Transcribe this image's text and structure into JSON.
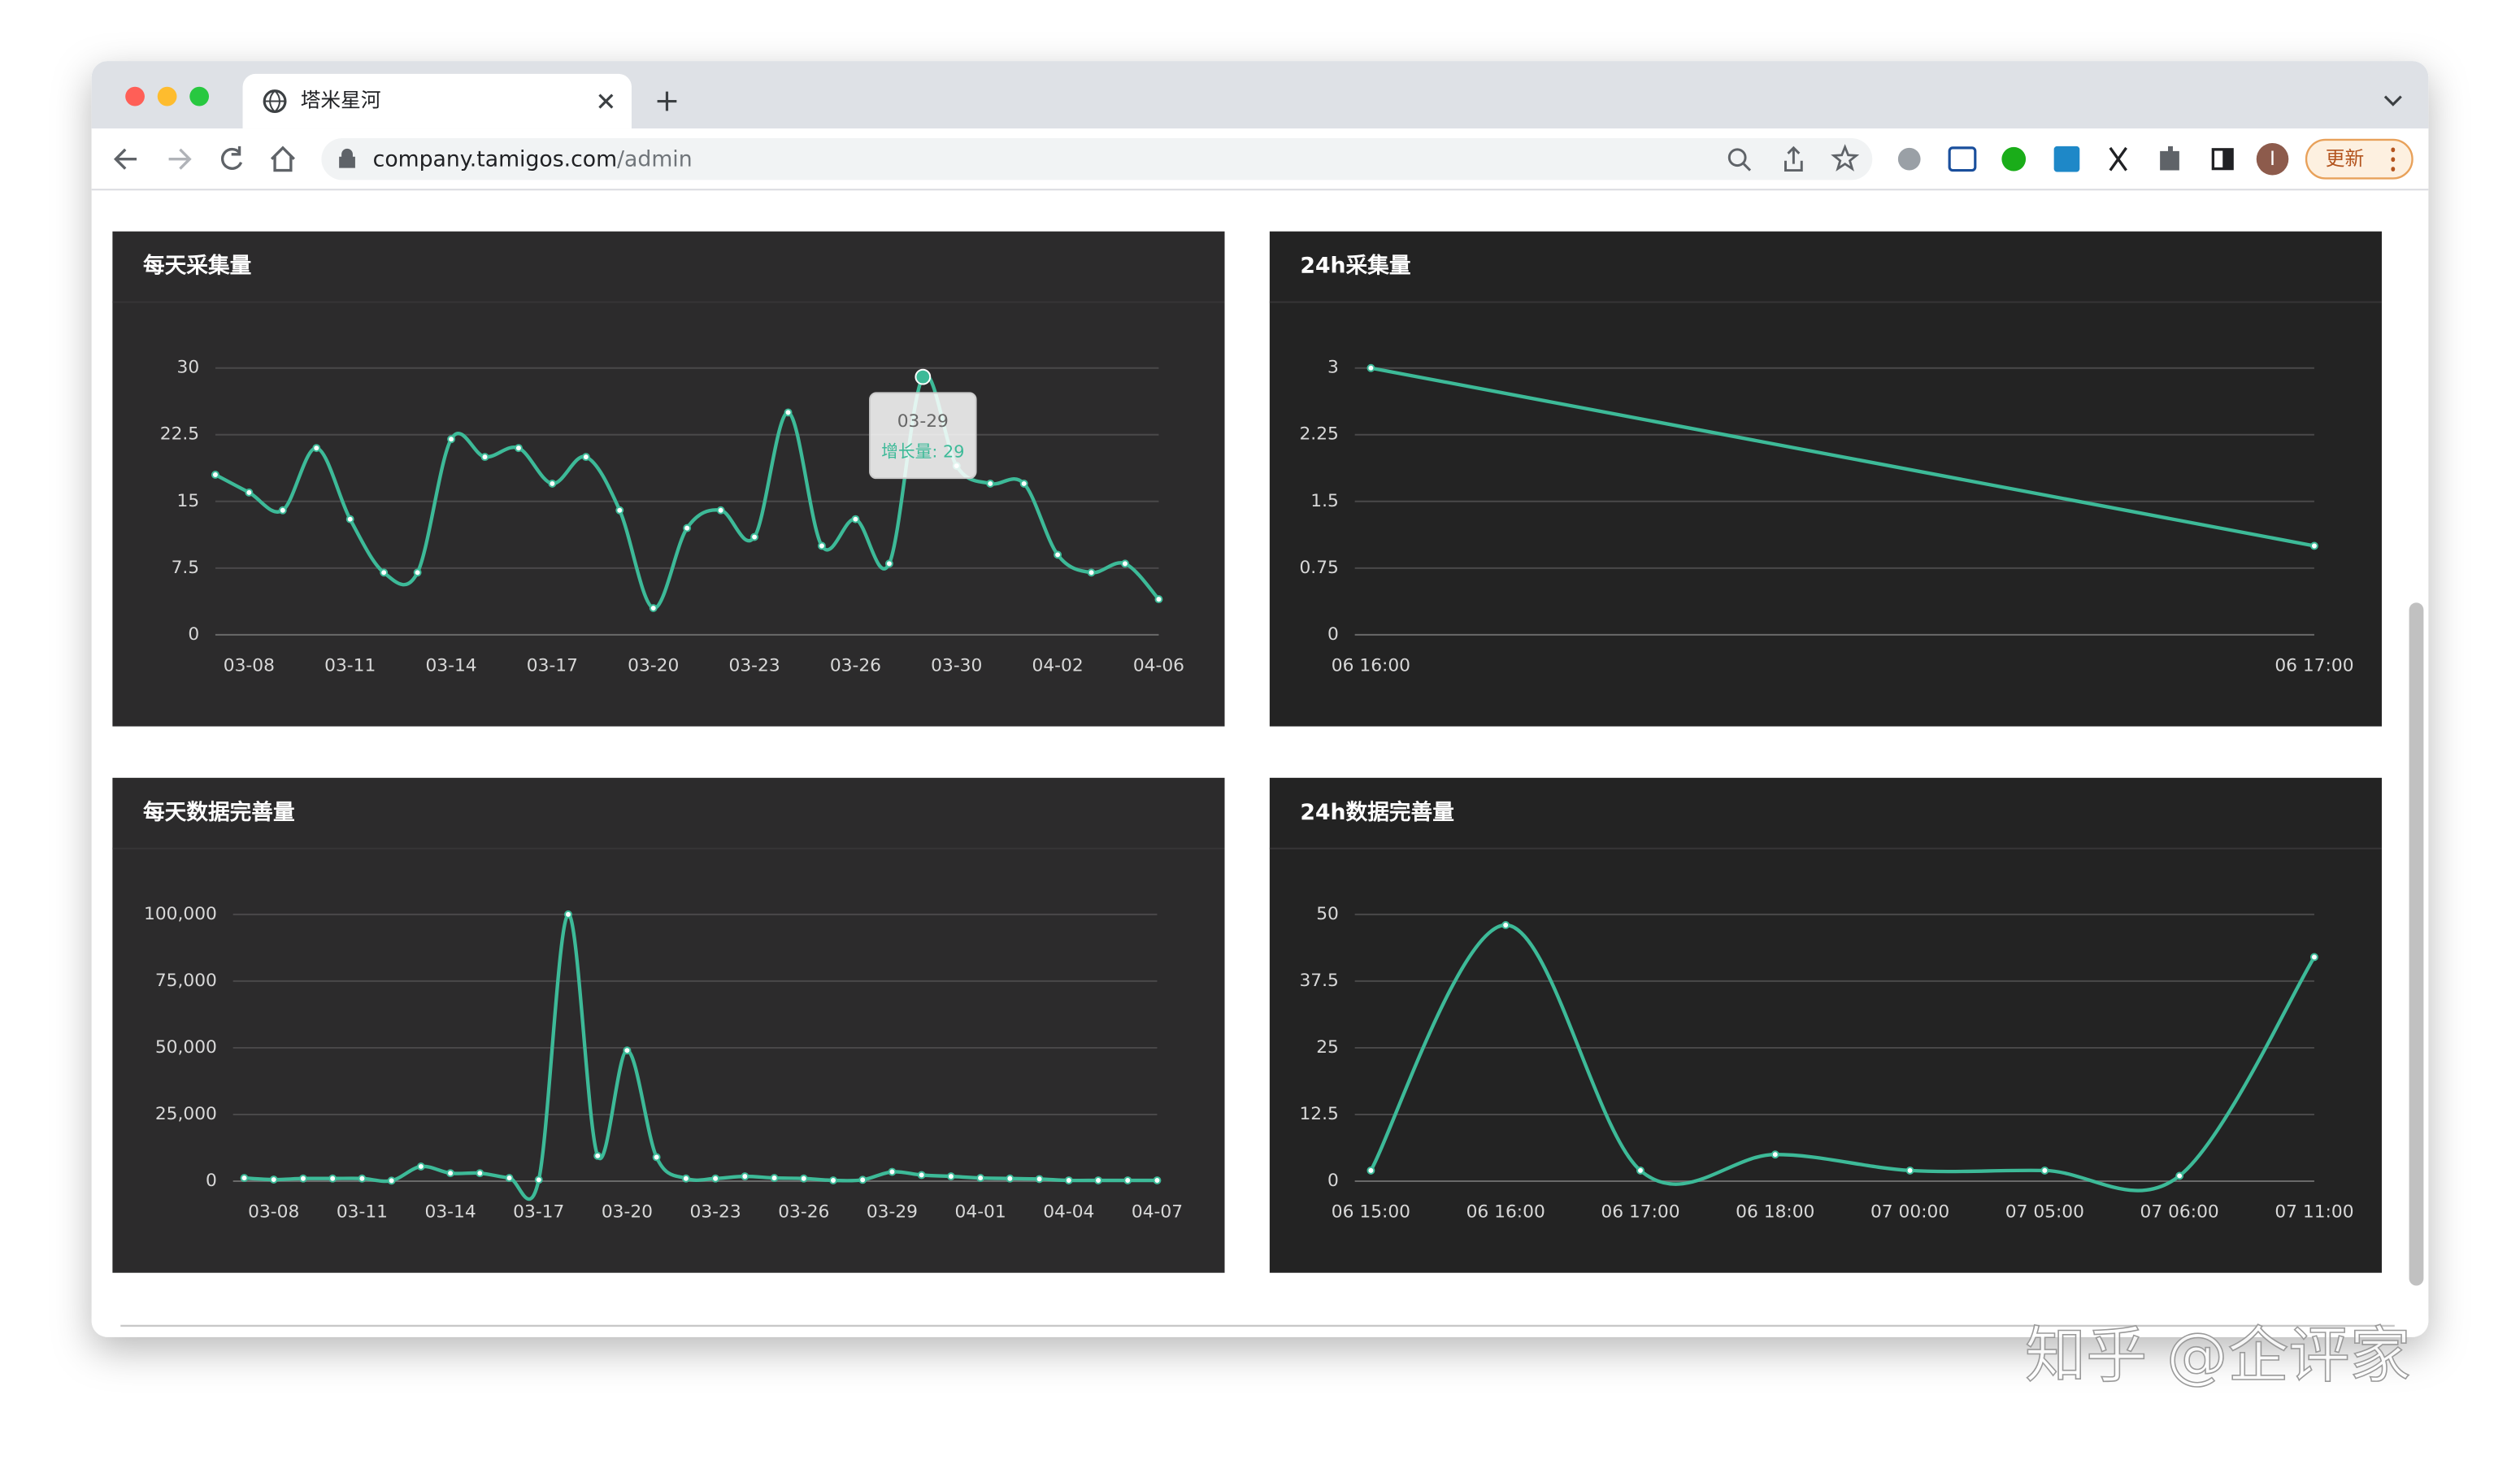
{
  "browser": {
    "tab_title": "塔米星河",
    "url_host": "company.tamigos.com",
    "url_path": "/admin",
    "update_button": "更新",
    "avatar": "I"
  },
  "watermark": "知乎 @企评家",
  "chart_data": [
    {
      "type": "line",
      "title": "每天采集量",
      "categories": [
        null,
        "03-08",
        null,
        null,
        "03-11",
        null,
        null,
        "03-14",
        null,
        null,
        "03-17",
        null,
        null,
        "03-20",
        null,
        null,
        "03-23",
        null,
        null,
        "03-26",
        null,
        null,
        "03-30",
        null,
        null,
        "04-02",
        null,
        null,
        "04-06"
      ],
      "values": [
        18,
        16,
        14,
        21,
        13,
        7,
        7,
        22,
        20,
        21,
        17,
        20,
        14,
        3,
        12,
        14,
        11,
        25,
        10,
        13,
        8,
        29,
        19,
        17,
        17,
        9,
        7,
        8,
        4
      ],
      "color": "#3dba98",
      "smooth": true,
      "grid": true,
      "ylim": [
        0,
        30
      ],
      "yticks": [
        0,
        7.5,
        15,
        22.5,
        30
      ],
      "tooltip": {
        "title": "03-29",
        "text": "增长量: 29"
      }
    },
    {
      "type": "line",
      "title": "24h采集量",
      "categories": [
        "06 16:00",
        "06 17:00"
      ],
      "values": [
        3,
        1
      ],
      "color": "#3dba98",
      "smooth": true,
      "grid": true,
      "ylim": [
        0,
        3
      ],
      "yticks": [
        0,
        0.75,
        1.5,
        2.25,
        3
      ]
    },
    {
      "type": "line",
      "title": "每天数据完善量",
      "categories": [
        null,
        "03-08",
        null,
        null,
        "03-11",
        null,
        null,
        "03-14",
        null,
        null,
        "03-17",
        null,
        null,
        "03-20",
        null,
        null,
        "03-23",
        null,
        null,
        "03-26",
        null,
        null,
        "03-29",
        null,
        null,
        "04-01",
        null,
        null,
        "04-04",
        null,
        null,
        "04-07"
      ],
      "values": [
        1200,
        600,
        1000,
        1000,
        1000,
        200,
        5500,
        3000,
        3000,
        1200,
        500,
        100000,
        9500,
        49000,
        9000,
        1000,
        1000,
        1800,
        1200,
        1000,
        300,
        500,
        3500,
        2300,
        1800,
        1200,
        1000,
        800,
        300,
        300,
        300,
        300
      ],
      "color": "#3dba98",
      "smooth": true,
      "grid": true,
      "ylim": [
        0,
        100000
      ],
      "yticks": [
        0,
        {
          "value": 25000,
          "label": "25,000"
        },
        {
          "value": 50000,
          "label": "50,000"
        },
        {
          "value": 75000,
          "label": "75,000"
        },
        {
          "value": 100000,
          "label": "100,000"
        }
      ]
    },
    {
      "type": "line",
      "title": "24h数据完善量",
      "categories": [
        "06 15:00",
        "06 16:00",
        "06 17:00",
        "06 18:00",
        "07 00:00",
        "07 05:00",
        "07 06:00",
        "07 11:00"
      ],
      "values": [
        2,
        48,
        2,
        5,
        2,
        2,
        1,
        42
      ],
      "color": "#3dba98",
      "smooth": true,
      "grid": true,
      "ylim": [
        0,
        50
      ],
      "yticks": [
        0,
        12.5,
        25,
        37.5,
        50
      ]
    }
  ]
}
